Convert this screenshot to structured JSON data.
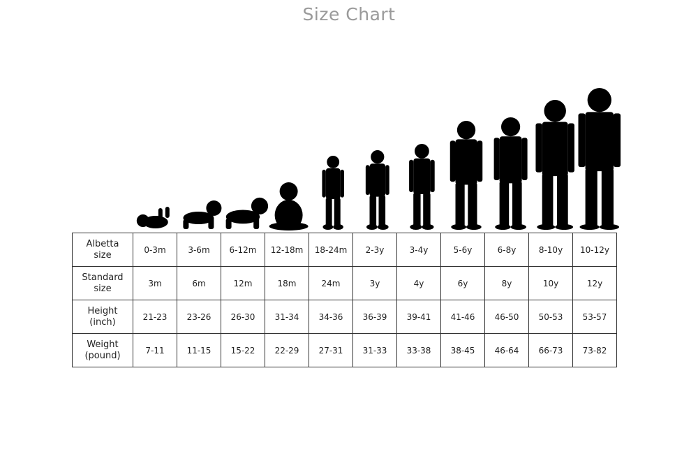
{
  "chart_data": {
    "type": "table",
    "title": "Size Chart",
    "rows": [
      {
        "label": "Albetta\nsize",
        "values": [
          "0-3m",
          "3-6m",
          "6-12m",
          "12-18m",
          "18-24m",
          "2-3y",
          "3-4y",
          "5-6y",
          "6-8y",
          "8-10y",
          "10-12y"
        ]
      },
      {
        "label": "Standard\nsize",
        "values": [
          "3m",
          "6m",
          "12m",
          "18m",
          "24m",
          "3y",
          "4y",
          "6y",
          "8y",
          "10y",
          "12y"
        ]
      },
      {
        "label": "Height\n(inch)",
        "values": [
          "21-23",
          "23-26",
          "26-30",
          "31-34",
          "34-36",
          "36-39",
          "39-41",
          "41-46",
          "46-50",
          "50-53",
          "53-57"
        ]
      },
      {
        "label": "Weight\n(pound)",
        "values": [
          "7-11",
          "11-15",
          "15-22",
          "22-29",
          "27-31",
          "31-33",
          "33-38",
          "38-45",
          "46-64",
          "66-73",
          "73-82"
        ]
      }
    ]
  },
  "silhouettes": [
    "baby-lying",
    "baby-crawling",
    "baby-crawling",
    "baby-sitting",
    "toddler-walking",
    "child",
    "child",
    "child",
    "child",
    "child",
    "child"
  ],
  "colors": {
    "title": "#9a9a9a",
    "silhouette": "#000000",
    "grid": "#333333"
  }
}
